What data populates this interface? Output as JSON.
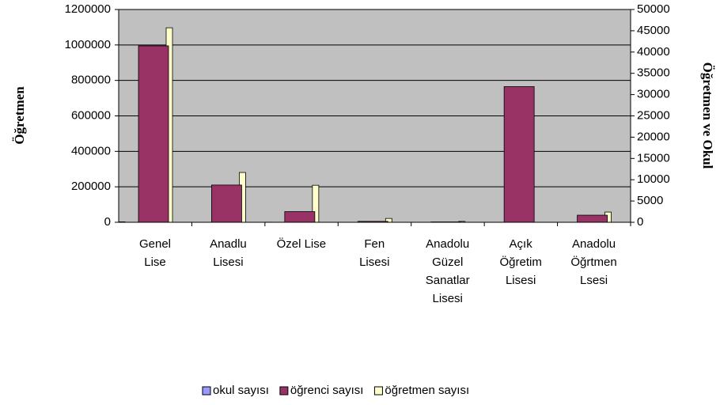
{
  "chart_data": {
    "type": "bar",
    "y_label": "Öğretmen",
    "y2_label": "Öğretmen ve Okul",
    "categories": [
      "Genel\nLise",
      "Anadlu\nLisesi",
      "Özel Lise",
      "Fen\nLisesi",
      "Anadolu\nGüzel\nSanatlar\nLisesi",
      "Açık\nÖğretim\nLisesi",
      "Anadolu\nÖğrtmen\nLsesi"
    ],
    "series": [
      {
        "name": "okul sayısı",
        "color": "#9999ff",
        "values": [
          2500,
          400,
          700,
          100,
          50,
          1,
          250
        ]
      },
      {
        "name": "öğrenci sayısı",
        "color": "#993366",
        "values": [
          995000,
          210000,
          60000,
          5000,
          2000,
          765000,
          40000
        ]
      },
      {
        "name": "öğretmen sayısı",
        "color": "#ffffcc",
        "axis": "y2",
        "values": [
          45700,
          11700,
          8700,
          900,
          200,
          0,
          2400
        ]
      }
    ],
    "ylim": [
      0,
      1200000
    ],
    "yticks": [
      0,
      200000,
      400000,
      600000,
      800000,
      1000000,
      1200000
    ],
    "y2lim": [
      0,
      50000
    ],
    "y2ticks": [
      0,
      5000,
      10000,
      15000,
      20000,
      25000,
      30000,
      35000,
      40000,
      45000,
      50000
    ],
    "grid": true,
    "legend": "bottom",
    "plot_background": "#c0c0c0"
  }
}
